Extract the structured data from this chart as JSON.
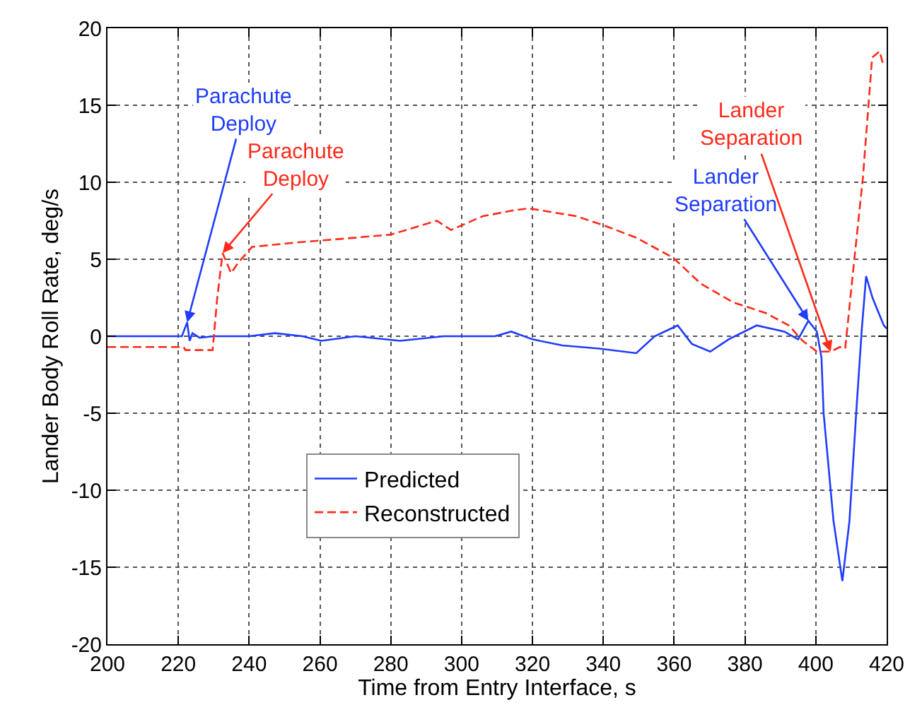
{
  "chart_data": {
    "type": "line",
    "xlabel": "Time from Entry Interface, s",
    "ylabel": "Lander Body Roll Rate, deg/s",
    "xlim": [
      200,
      420
    ],
    "xticks": [
      200,
      220,
      240,
      260,
      280,
      300,
      320,
      340,
      360,
      380,
      400,
      420
    ],
    "ylim": [
      -20,
      20
    ],
    "yticks": [
      -20,
      -15,
      -10,
      -5,
      0,
      5,
      10,
      15,
      20
    ],
    "grid": true,
    "legend": "bottom left",
    "marker": "none",
    "series": [
      {
        "name": "Predicted",
        "color": "#1f3cff",
        "line_style": "solid",
        "x": [
          200,
          210,
          221,
          222.5,
          223.2,
          224,
          226,
          230,
          240,
          247.3,
          255,
          260.4,
          270,
          282.6,
          295,
          309.4,
          314,
          320,
          328.4,
          338.8,
          349.3,
          354.5,
          361,
          365,
          370.2,
          375.4,
          383.3,
          391.1,
          395,
          397.9,
          400.3,
          401.6,
          402.2,
          405,
          407.5,
          409.5,
          411.4,
          413,
          414.2,
          416,
          419.2,
          420
        ],
        "values": [
          0,
          0,
          0,
          0.9,
          -0.3,
          0.2,
          -0.1,
          0,
          0,
          0.2,
          0,
          -0.3,
          0,
          -0.3,
          0,
          0,
          0.3,
          -0.2,
          -0.6,
          -0.8,
          -1.1,
          0,
          0.7,
          -0.5,
          -1,
          -0.2,
          0.7,
          0.3,
          -0.2,
          1,
          0.3,
          -1.4,
          -5,
          -12,
          -15.9,
          -12,
          -5,
          0.5,
          3.9,
          2.5,
          0.7,
          0.5
        ]
      },
      {
        "name": "Reconstructed",
        "color": "#ff2a1a",
        "line_style": "dashed",
        "x": [
          200,
          221.5,
          222,
          228,
          229.7,
          231,
          232.5,
          234.9,
          237,
          240.8,
          253.9,
          265,
          280,
          293,
          297,
          306,
          315.3,
          319,
          332.3,
          340.1,
          349.3,
          359.7,
          367.6,
          376.7,
          385.9,
          392.4,
          396.3,
          400.3,
          404.2,
          406.8,
          408.3,
          410.7,
          413.3,
          415.9,
          418,
          419.2
        ],
        "values": [
          -0.7,
          -0.7,
          -0.9,
          -0.9,
          -0.9,
          2.5,
          5.4,
          4.1,
          4.8,
          5.8,
          6.1,
          6.3,
          6.6,
          7.5,
          6.9,
          7.8,
          8.2,
          8.3,
          7.8,
          7.2,
          6.4,
          5.1,
          3.4,
          2.2,
          1.5,
          0.7,
          -0.3,
          -1,
          -1,
          -0.7,
          -0.8,
          4.6,
          10.3,
          18.1,
          18.5,
          17.5
        ]
      }
    ],
    "annotations": [
      {
        "text": "Parachute\nDeploy",
        "x": 222.5,
        "y": 0.9
      },
      {
        "text": "Parachute\nDeploy",
        "x": 232.5,
        "y": 5.4
      },
      {
        "text": "Lander\nSeparation",
        "x": 397.9,
        "y": 1
      },
      {
        "text": "Lander\nSeparation",
        "x": 404.2,
        "y": -1
      }
    ]
  }
}
